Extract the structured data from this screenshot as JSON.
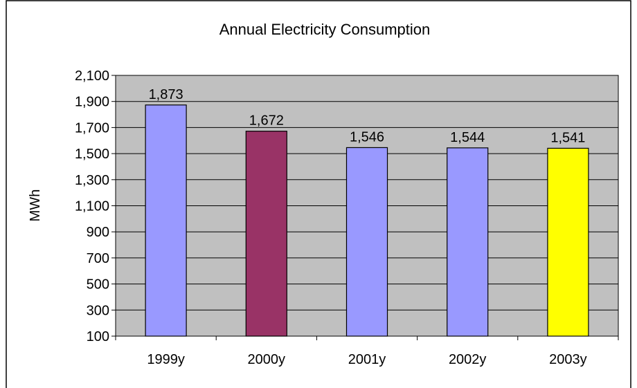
{
  "chart_data": {
    "type": "bar",
    "title": "Annual Electricity Consumption",
    "xlabel": "",
    "ylabel": "MWh",
    "categories": [
      "1999y",
      "2000y",
      "2001y",
      "2002y",
      "2003y"
    ],
    "values": [
      1873,
      1672,
      1546,
      1544,
      1541
    ],
    "value_labels": [
      "1,873",
      "1,672",
      "1,546",
      "1,544",
      "1,541"
    ],
    "bar_colors": [
      "#9999ff",
      "#993366",
      "#9999ff",
      "#9999ff",
      "#ffff00"
    ],
    "ylim": [
      100,
      2100
    ],
    "yticks": [
      100,
      300,
      500,
      700,
      900,
      1100,
      1300,
      1500,
      1700,
      1900,
      2100
    ],
    "ytick_labels": [
      "100",
      "300",
      "500",
      "700",
      "900",
      "1,100",
      "1,300",
      "1,500",
      "1,700",
      "1,900",
      "2,100"
    ],
    "grid": "horizontal",
    "legend": "none",
    "plot_background": "#c0c0c0",
    "grid_color": "#000000"
  }
}
